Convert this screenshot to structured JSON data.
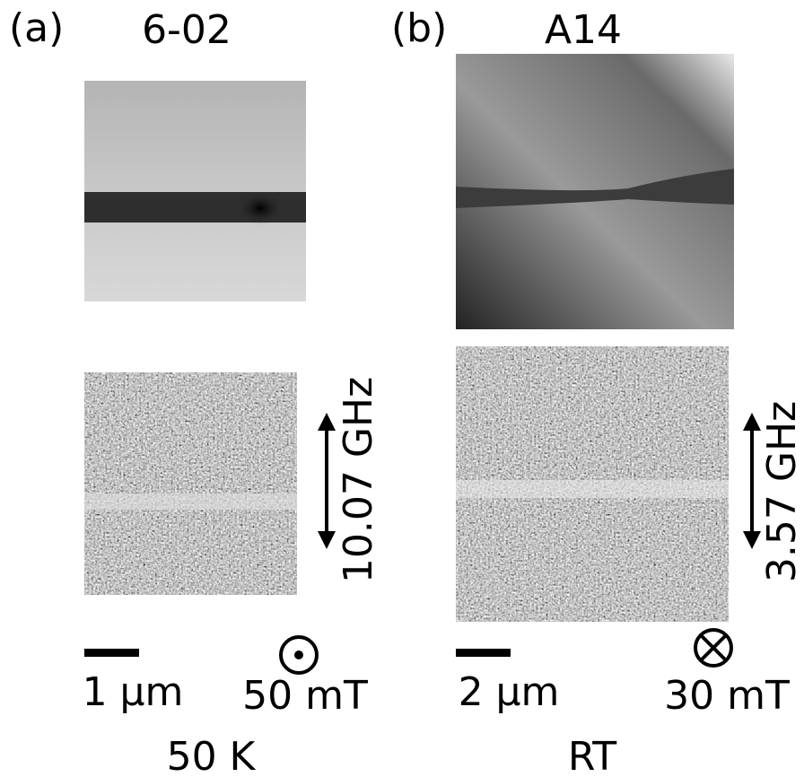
{
  "panels": [
    {
      "label": "(a)",
      "sample": "6-02",
      "frequency": "10.07 GHz",
      "scale_bar": "1 µm",
      "field": "50 mT",
      "temperature": "50 K"
    },
    {
      "label": "(b)",
      "sample": "A14",
      "frequency": "3.57 GHz",
      "scale_bar": "2 µm",
      "field": "30 mT",
      "temperature": "RT"
    }
  ]
}
